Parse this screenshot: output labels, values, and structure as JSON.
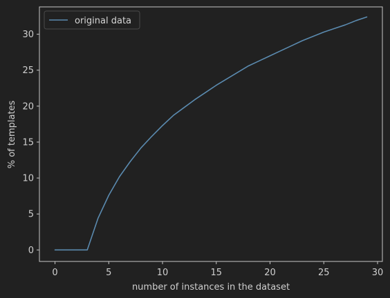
{
  "chart_data": {
    "type": "line",
    "xlabel": "number of instances in the dataset",
    "ylabel": "% of templates",
    "xlim": [
      -1.45,
      30.45
    ],
    "ylim": [
      -1.6,
      33.8
    ],
    "xticks": [
      0,
      5,
      10,
      15,
      20,
      25,
      30
    ],
    "yticks": [
      0,
      5,
      10,
      15,
      20,
      25,
      30
    ],
    "grid": false,
    "legend_position": "top-left",
    "series": [
      {
        "name": "original data",
        "color": "#5b8bb0",
        "x": [
          0,
          1,
          2,
          3,
          4,
          5,
          6,
          7,
          8,
          9,
          10,
          11,
          12,
          13,
          14,
          15,
          16,
          17,
          18,
          19,
          20,
          21,
          22,
          23,
          24,
          25,
          26,
          27,
          28,
          29
        ],
        "y": [
          0,
          0,
          0,
          0,
          4.4,
          7.6,
          10.2,
          12.3,
          14.2,
          15.8,
          17.3,
          18.7,
          19.8,
          20.9,
          21.9,
          22.9,
          23.8,
          24.7,
          25.6,
          26.3,
          27.0,
          27.7,
          28.4,
          29.1,
          29.7,
          30.3,
          30.8,
          31.3,
          31.9,
          32.4
        ]
      }
    ],
    "colors": {
      "background": "#212121",
      "axes": "#c8c8c8",
      "text": "#cfcfcf"
    }
  }
}
